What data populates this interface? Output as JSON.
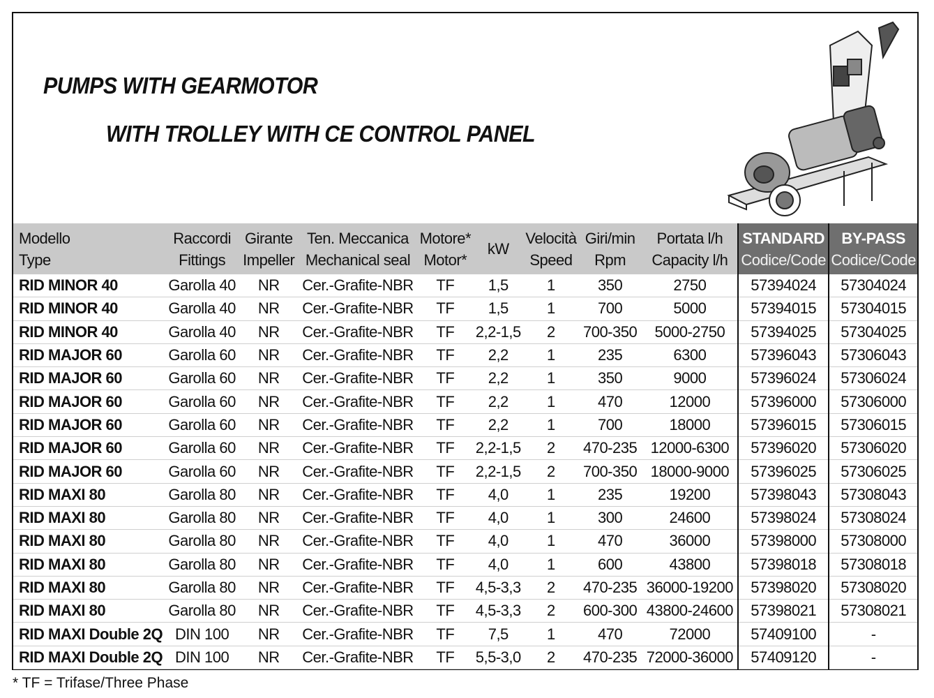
{
  "title_line1": "PUMPS WITH GEARMOTOR",
  "title_line2": "WITH TROLLEY WITH CE CONTROL PANEL",
  "product_image": "pump-on-trolley-illustration",
  "header": {
    "model": [
      "Modello",
      "Type"
    ],
    "fittings": [
      "Raccordi",
      "Fittings"
    ],
    "impeller": [
      "Girante",
      "Impeller"
    ],
    "seal": [
      "Ten. Meccanica",
      "Mechanical seal"
    ],
    "motor": [
      "Motore*",
      "Motor*"
    ],
    "kw": "kW",
    "speed": [
      "Velocità",
      "Speed"
    ],
    "rpm": [
      "Giri/min",
      "Rpm"
    ],
    "capacity": [
      "Portata l/h",
      "Capacity l/h"
    ],
    "standard": [
      "STANDARD",
      "Codice/Code"
    ],
    "bypass": [
      "BY-PASS",
      "Codice/Code"
    ]
  },
  "rows": [
    [
      "RID MINOR 40",
      "Garolla 40",
      "NR",
      "Cer.-Grafite-NBR",
      "TF",
      "1,5",
      "1",
      "350",
      "2750",
      "57394024",
      "57304024"
    ],
    [
      "RID MINOR 40",
      "Garolla 40",
      "NR",
      "Cer.-Grafite-NBR",
      "TF",
      "1,5",
      "1",
      "700",
      "5000",
      "57394015",
      "57304015"
    ],
    [
      "RID MINOR 40",
      "Garolla 40",
      "NR",
      "Cer.-Grafite-NBR",
      "TF",
      "2,2-1,5",
      "2",
      "700-350",
      "5000-2750",
      "57394025",
      "57304025"
    ],
    [
      "RID MAJOR 60",
      "Garolla 60",
      "NR",
      "Cer.-Grafite-NBR",
      "TF",
      "2,2",
      "1",
      "235",
      "6300",
      "57396043",
      "57306043"
    ],
    [
      "RID MAJOR 60",
      "Garolla 60",
      "NR",
      "Cer.-Grafite-NBR",
      "TF",
      "2,2",
      "1",
      "350",
      "9000",
      "57396024",
      "57306024"
    ],
    [
      "RID MAJOR 60",
      "Garolla 60",
      "NR",
      "Cer.-Grafite-NBR",
      "TF",
      "2,2",
      "1",
      "470",
      "12000",
      "57396000",
      "57306000"
    ],
    [
      "RID MAJOR 60",
      "Garolla 60",
      "NR",
      "Cer.-Grafite-NBR",
      "TF",
      "2,2",
      "1",
      "700",
      "18000",
      "57396015",
      "57306015"
    ],
    [
      "RID MAJOR 60",
      "Garolla 60",
      "NR",
      "Cer.-Grafite-NBR",
      "TF",
      "2,2-1,5",
      "2",
      "470-235",
      "12000-6300",
      "57396020",
      "57306020"
    ],
    [
      "RID MAJOR 60",
      "Garolla 60",
      "NR",
      "Cer.-Grafite-NBR",
      "TF",
      "2,2-1,5",
      "2",
      "700-350",
      "18000-9000",
      "57396025",
      "57306025"
    ],
    [
      "RID MAXI 80",
      "Garolla 80",
      "NR",
      "Cer.-Grafite-NBR",
      "TF",
      "4,0",
      "1",
      "235",
      "19200",
      "57398043",
      "57308043"
    ],
    [
      "RID MAXI 80",
      "Garolla 80",
      "NR",
      "Cer.-Grafite-NBR",
      "TF",
      "4,0",
      "1",
      "300",
      "24600",
      "57398024",
      "57308024"
    ],
    [
      "RID MAXI 80",
      "Garolla 80",
      "NR",
      "Cer.-Grafite-NBR",
      "TF",
      "4,0",
      "1",
      "470",
      "36000",
      "57398000",
      "57308000"
    ],
    [
      "RID MAXI 80",
      "Garolla 80",
      "NR",
      "Cer.-Grafite-NBR",
      "TF",
      "4,0",
      "1",
      "600",
      "43800",
      "57398018",
      "57308018"
    ],
    [
      "RID MAXI 80",
      "Garolla 80",
      "NR",
      "Cer.-Grafite-NBR",
      "TF",
      "4,5-3,3",
      "2",
      "470-235",
      "36000-19200",
      "57398020",
      "57308020"
    ],
    [
      "RID MAXI 80",
      "Garolla 80",
      "NR",
      "Cer.-Grafite-NBR",
      "TF",
      "4,5-3,3",
      "2",
      "600-300",
      "43800-24600",
      "57398021",
      "57308021"
    ],
    [
      "RID MAXI Double 2Q",
      "DIN 100",
      "NR",
      "Cer.-Grafite-NBR",
      "TF",
      "7,5",
      "1",
      "470",
      "72000",
      "57409100",
      "-"
    ],
    [
      "RID MAXI Double 2Q",
      "DIN 100",
      "NR",
      "Cer.-Grafite-NBR",
      "TF",
      "5,5-3,0",
      "2",
      "470-235",
      "72000-36000",
      "57409120",
      "-"
    ]
  ],
  "footnote": "* TF = Trifase/Three Phase",
  "colors": {
    "header_bg": "#c9c9c9",
    "code_header_bg": "#6f6f6f"
  }
}
